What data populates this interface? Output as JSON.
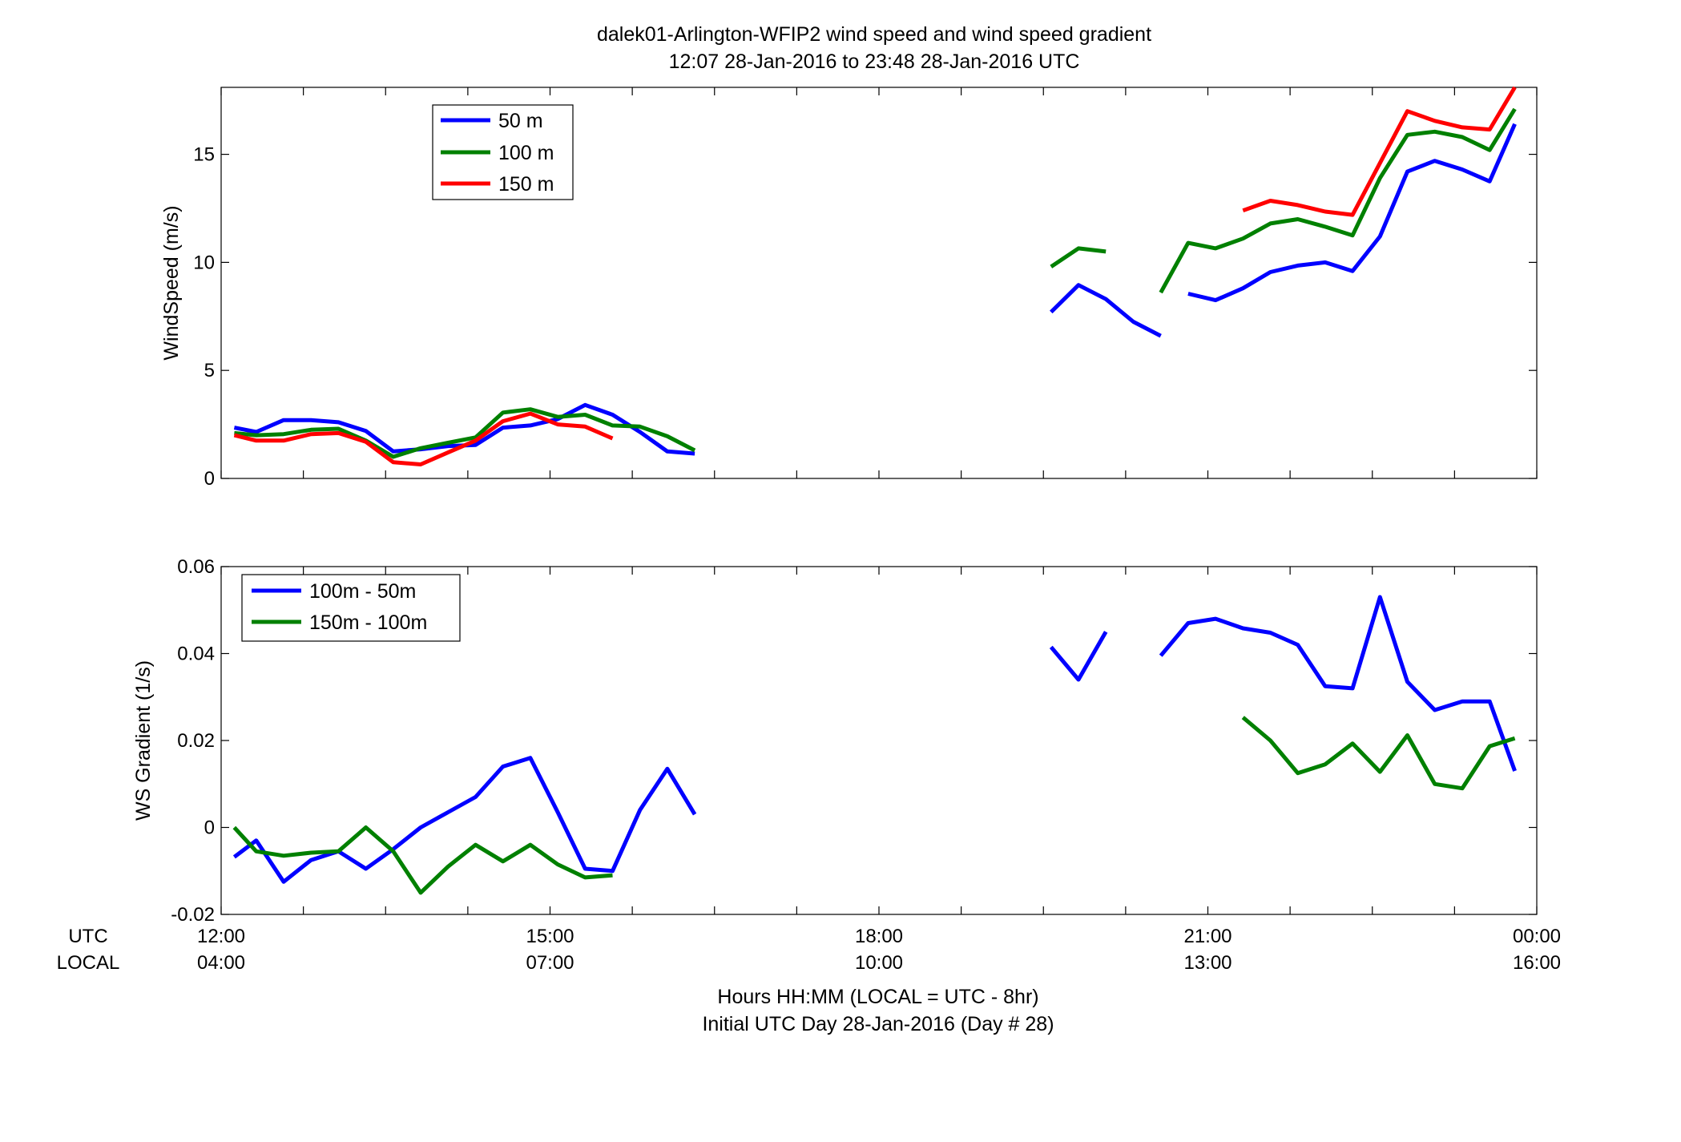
{
  "figure": {
    "title_line1": "dalek01-Arlington-WFIP2  wind speed and wind speed gradient",
    "title_line2": "12:07 28-Jan-2016 to 23:48 28-Jan-2016  UTC",
    "xlabel_line1": "Hours HH:MM  (LOCAL = UTC - 8hr)",
    "xlabel_line2": "Initial UTC Day 28-Jan-2016 (Day # 28)",
    "utc_label": "UTC",
    "local_label": "LOCAL",
    "utc_ticks": [
      "12:00",
      "15:00",
      "18:00",
      "21:00",
      "00:00"
    ],
    "local_ticks": [
      "04:00",
      "07:00",
      "10:00",
      "13:00",
      "16:00"
    ]
  },
  "chart_data": [
    {
      "type": "line",
      "ylabel": "WindSpeed (m/s)",
      "xlim": [
        12,
        24
      ],
      "ylim": [
        0,
        18.1
      ],
      "yticks": [
        0,
        5,
        10,
        15
      ],
      "x_ticks_hours": [
        12,
        15,
        18,
        21,
        24
      ],
      "grid": false,
      "legend_position": "top-left",
      "series": [
        {
          "name": "50 m",
          "color": "#0000ff",
          "points": [
            [
              12.12,
              2.35
            ],
            [
              12.32,
              2.15
            ],
            [
              12.57,
              2.7
            ],
            [
              12.82,
              2.7
            ],
            [
              13.07,
              2.6
            ],
            [
              13.32,
              2.2
            ],
            [
              13.57,
              1.25
            ],
            [
              13.82,
              1.35
            ],
            [
              14.07,
              1.5
            ],
            [
              14.32,
              1.55
            ],
            [
              14.57,
              2.35
            ],
            [
              14.82,
              2.45
            ],
            [
              15.07,
              2.75
            ],
            [
              15.32,
              3.4
            ],
            [
              15.57,
              2.95
            ],
            [
              15.82,
              2.15
            ],
            [
              16.07,
              1.25
            ],
            [
              16.32,
              1.15
            ],
            null,
            [
              19.57,
              7.7
            ],
            [
              19.82,
              8.95
            ],
            [
              20.07,
              8.3
            ],
            [
              20.32,
              7.25
            ],
            [
              20.57,
              6.6
            ],
            null,
            [
              20.82,
              8.55
            ],
            [
              21.07,
              8.25
            ],
            [
              21.32,
              8.8
            ],
            [
              21.57,
              9.55
            ],
            [
              21.82,
              9.85
            ],
            [
              22.07,
              10.0
            ],
            [
              22.32,
              9.6
            ],
            [
              22.57,
              11.2
            ],
            [
              22.82,
              14.2
            ],
            [
              23.07,
              14.7
            ],
            [
              23.32,
              14.3
            ],
            [
              23.57,
              13.75
            ],
            [
              23.8,
              16.4
            ]
          ]
        },
        {
          "name": "100 m",
          "color": "#008000",
          "points": [
            [
              12.12,
              2.1
            ],
            [
              12.32,
              2.0
            ],
            [
              12.57,
              2.05
            ],
            [
              12.82,
              2.25
            ],
            [
              13.07,
              2.3
            ],
            [
              13.32,
              1.75
            ],
            [
              13.57,
              1.0
            ],
            [
              13.82,
              1.4
            ],
            [
              14.07,
              1.65
            ],
            [
              14.32,
              1.9
            ],
            [
              14.57,
              3.05
            ],
            [
              14.82,
              3.2
            ],
            [
              15.07,
              2.85
            ],
            [
              15.32,
              2.95
            ],
            [
              15.57,
              2.45
            ],
            [
              15.82,
              2.4
            ],
            [
              16.07,
              1.95
            ],
            [
              16.32,
              1.3
            ],
            null,
            [
              19.57,
              9.8
            ],
            [
              19.82,
              10.65
            ],
            [
              20.07,
              10.5
            ],
            null,
            [
              20.57,
              8.6
            ],
            [
              20.82,
              10.9
            ],
            [
              21.07,
              10.65
            ],
            [
              21.32,
              11.1
            ],
            [
              21.57,
              11.8
            ],
            [
              21.82,
              12.0
            ],
            [
              22.07,
              11.65
            ],
            [
              22.32,
              11.25
            ],
            [
              22.57,
              13.9
            ],
            [
              22.82,
              15.9
            ],
            [
              23.07,
              16.05
            ],
            [
              23.32,
              15.8
            ],
            [
              23.57,
              15.2
            ],
            [
              23.8,
              17.1
            ]
          ]
        },
        {
          "name": "150 m",
          "color": "#ff0000",
          "points": [
            [
              12.12,
              2.0
            ],
            [
              12.32,
              1.75
            ],
            [
              12.57,
              1.75
            ],
            [
              12.82,
              2.05
            ],
            [
              13.07,
              2.1
            ],
            [
              13.32,
              1.7
            ],
            [
              13.57,
              0.75
            ],
            [
              13.82,
              0.65
            ],
            [
              14.07,
              1.2
            ],
            [
              14.32,
              1.75
            ],
            [
              14.57,
              2.65
            ],
            [
              14.82,
              3.0
            ],
            [
              15.07,
              2.5
            ],
            [
              15.32,
              2.4
            ],
            [
              15.57,
              1.85
            ],
            null,
            [
              21.32,
              12.4
            ],
            [
              21.57,
              12.85
            ],
            [
              21.82,
              12.65
            ],
            [
              22.07,
              12.35
            ],
            [
              22.32,
              12.2
            ],
            [
              22.57,
              14.6
            ],
            [
              22.82,
              17.0
            ],
            [
              23.07,
              16.55
            ],
            [
              23.32,
              16.25
            ],
            [
              23.57,
              16.15
            ],
            [
              23.8,
              18.1
            ]
          ]
        }
      ]
    },
    {
      "type": "line",
      "ylabel": "WS Gradient (1/s)",
      "xlim": [
        12,
        24
      ],
      "ylim": [
        -0.02,
        0.06
      ],
      "yticks": [
        -0.02,
        0,
        0.02,
        0.04,
        0.06
      ],
      "ytick_labels": [
        "-0.02",
        "0",
        "0.02",
        "0.04",
        "0.06"
      ],
      "x_ticks_hours": [
        12,
        15,
        18,
        21,
        24
      ],
      "grid": false,
      "legend_position": "top-left",
      "series": [
        {
          "name": "100m - 50m",
          "color": "#0000ff",
          "points": [
            [
              12.12,
              -0.0068
            ],
            [
              12.32,
              -0.003
            ],
            [
              12.57,
              -0.0125
            ],
            [
              12.82,
              -0.0075
            ],
            [
              13.07,
              -0.0055
            ],
            [
              13.32,
              -0.0095
            ],
            [
              13.57,
              -0.005
            ],
            [
              13.82,
              0.0
            ],
            [
              14.07,
              0.0035
            ],
            [
              14.32,
              0.007
            ],
            [
              14.57,
              0.014
            ],
            [
              14.82,
              0.016
            ],
            [
              15.07,
              0.0035
            ],
            [
              15.32,
              -0.0095
            ],
            [
              15.57,
              -0.01
            ],
            [
              15.82,
              0.004
            ],
            [
              16.07,
              0.0135
            ],
            [
              16.32,
              0.003
            ],
            null,
            [
              19.57,
              0.0415
            ],
            [
              19.82,
              0.034
            ],
            [
              20.07,
              0.045
            ],
            null,
            [
              20.57,
              0.0395
            ],
            [
              20.82,
              0.047
            ],
            [
              21.07,
              0.048
            ],
            [
              21.32,
              0.0458
            ],
            [
              21.57,
              0.0448
            ],
            [
              21.82,
              0.042
            ],
            [
              22.07,
              0.0325
            ],
            [
              22.32,
              0.032
            ],
            [
              22.57,
              0.053
            ],
            [
              22.82,
              0.0335
            ],
            [
              23.07,
              0.027
            ],
            [
              23.32,
              0.029
            ],
            [
              23.57,
              0.029
            ],
            [
              23.8,
              0.013
            ]
          ]
        },
        {
          "name": "150m - 100m",
          "color": "#008000",
          "points": [
            [
              12.12,
              0.0
            ],
            [
              12.32,
              -0.0055
            ],
            [
              12.57,
              -0.0065
            ],
            [
              12.82,
              -0.0058
            ],
            [
              13.07,
              -0.0055
            ],
            [
              13.32,
              0.0
            ],
            [
              13.57,
              -0.0055
            ],
            [
              13.82,
              -0.015
            ],
            [
              14.07,
              -0.009
            ],
            [
              14.32,
              -0.004
            ],
            [
              14.57,
              -0.0078
            ],
            [
              14.82,
              -0.004
            ],
            [
              15.07,
              -0.0085
            ],
            [
              15.32,
              -0.0115
            ],
            [
              15.57,
              -0.011
            ],
            null,
            [
              21.32,
              0.0253
            ],
            [
              21.57,
              0.02
            ],
            [
              21.82,
              0.0125
            ],
            [
              22.07,
              0.0145
            ],
            [
              22.32,
              0.0193
            ],
            [
              22.57,
              0.0128
            ],
            [
              22.82,
              0.0212
            ],
            [
              23.07,
              0.01
            ],
            [
              23.32,
              0.009
            ],
            [
              23.57,
              0.0187
            ],
            [
              23.8,
              0.0205
            ]
          ]
        }
      ]
    }
  ]
}
